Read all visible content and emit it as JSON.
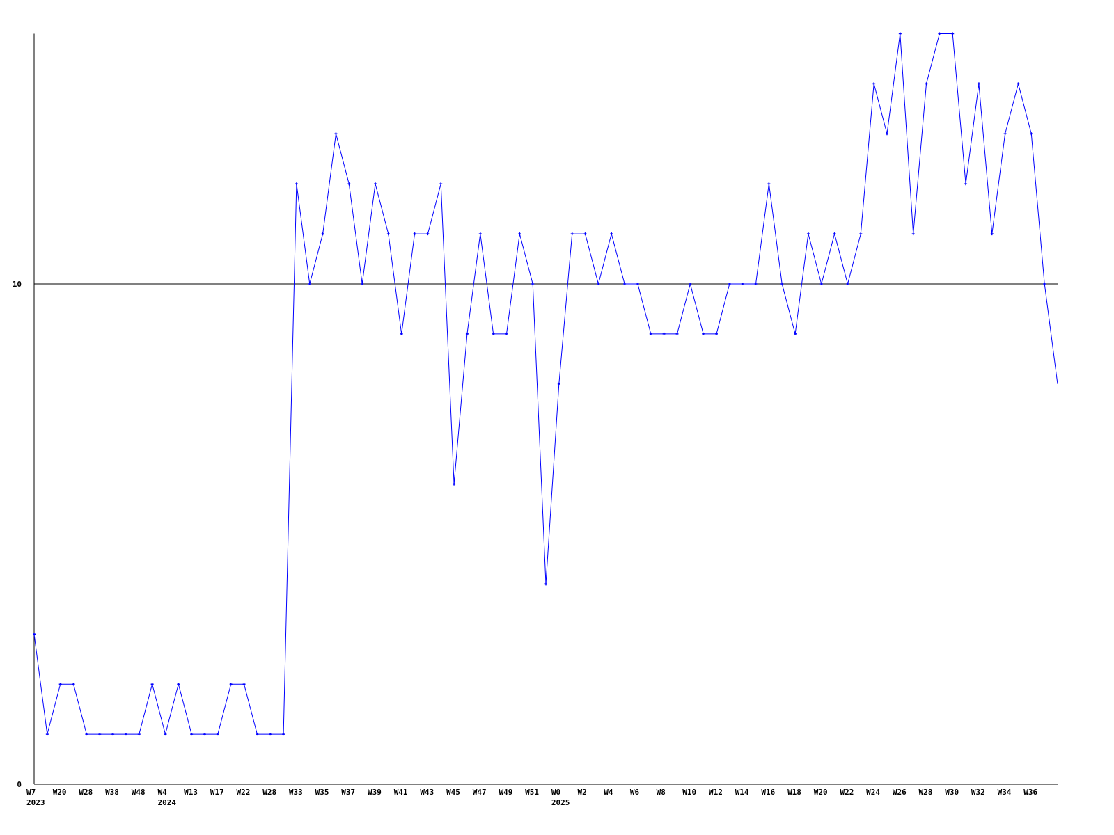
{
  "chart_data": {
    "type": "line",
    "title": "",
    "xlabel": "",
    "ylabel": "",
    "ylim": [
      0,
      15
    ],
    "y_ticks": [
      {
        "value": 0,
        "label": "0"
      },
      {
        "value": 10,
        "label": "10"
      }
    ],
    "reference_line": 10,
    "grid": false,
    "colors": {
      "series": "#0000ff",
      "axis": "#000000"
    },
    "x_ticks": [
      {
        "index": 0,
        "label": "W7",
        "year": "2023"
      },
      {
        "index": 2,
        "label": "W20"
      },
      {
        "index": 4,
        "label": "W28"
      },
      {
        "index": 6,
        "label": "W38"
      },
      {
        "index": 8,
        "label": "W48"
      },
      {
        "index": 10,
        "label": "W4",
        "year": "2024"
      },
      {
        "index": 12,
        "label": "W13"
      },
      {
        "index": 14,
        "label": "W17"
      },
      {
        "index": 16,
        "label": "W22"
      },
      {
        "index": 18,
        "label": "W28"
      },
      {
        "index": 20,
        "label": "W33"
      },
      {
        "index": 22,
        "label": "W35"
      },
      {
        "index": 24,
        "label": "W37"
      },
      {
        "index": 26,
        "label": "W39"
      },
      {
        "index": 28,
        "label": "W41"
      },
      {
        "index": 30,
        "label": "W43"
      },
      {
        "index": 32,
        "label": "W45"
      },
      {
        "index": 34,
        "label": "W47"
      },
      {
        "index": 36,
        "label": "W49"
      },
      {
        "index": 38,
        "label": "W51"
      },
      {
        "index": 40,
        "label": "W0",
        "year": "2025"
      },
      {
        "index": 42,
        "label": "W2"
      },
      {
        "index": 44,
        "label": "W4"
      },
      {
        "index": 46,
        "label": "W6"
      },
      {
        "index": 48,
        "label": "W8"
      },
      {
        "index": 50,
        "label": "W10"
      },
      {
        "index": 52,
        "label": "W12"
      },
      {
        "index": 54,
        "label": "W14"
      },
      {
        "index": 56,
        "label": "W16"
      },
      {
        "index": 58,
        "label": "W18"
      },
      {
        "index": 60,
        "label": "W20"
      },
      {
        "index": 62,
        "label": "W22"
      },
      {
        "index": 64,
        "label": "W24"
      },
      {
        "index": 66,
        "label": "W26"
      },
      {
        "index": 68,
        "label": "W28"
      },
      {
        "index": 70,
        "label": "W30"
      },
      {
        "index": 72,
        "label": "W32"
      },
      {
        "index": 74,
        "label": "W34"
      },
      {
        "index": 76,
        "label": "W36"
      }
    ],
    "series": [
      {
        "values": [
          3,
          1,
          2,
          2,
          1,
          1,
          1,
          1,
          1,
          2,
          1,
          2,
          1,
          1,
          1,
          2,
          2,
          1,
          1,
          1,
          12,
          10,
          11,
          13,
          12,
          10,
          12,
          11,
          9,
          11,
          11,
          12,
          6,
          9,
          11,
          9,
          9,
          11,
          10,
          4,
          8,
          11,
          11,
          10,
          11,
          10,
          10,
          9,
          9,
          9,
          10,
          9,
          9,
          10,
          10,
          10,
          12,
          10,
          9,
          11,
          10,
          11,
          10,
          11,
          14,
          13,
          15,
          11,
          14,
          15,
          15,
          12,
          14,
          11,
          13,
          14,
          13,
          10,
          8
        ]
      }
    ]
  }
}
